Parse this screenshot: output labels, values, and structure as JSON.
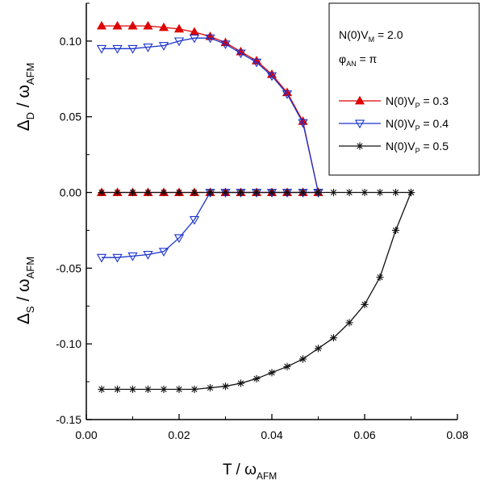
{
  "chart_data": {
    "type": "line",
    "title": "",
    "xlabel": {
      "main": "T / ω",
      "sub": "AFM"
    },
    "ylabel_top": {
      "main": "Δ",
      "sub1": "D",
      "mid": " / ω",
      "sub2": "AFM"
    },
    "ylabel_bottom": {
      "main": "Δ",
      "sub1": "S",
      "mid": " / ω",
      "sub2": "AFM"
    },
    "xlim": [
      0.0,
      0.08
    ],
    "ylim": [
      -0.15,
      0.125
    ],
    "xticks": [
      "0.00",
      "0.02",
      "0.04",
      "0.06",
      "0.08"
    ],
    "yticks": [
      "-0.15",
      "-0.10",
      "-0.05",
      "0.00",
      "0.05",
      "0.10"
    ],
    "xtick_values": [
      0.0,
      0.02,
      0.04,
      0.06,
      0.08
    ],
    "ytick_values": [
      -0.15,
      -0.1,
      -0.05,
      0.0,
      0.05,
      0.1
    ],
    "grid": false,
    "legend_position": "top-right",
    "annotations": {
      "line1": {
        "main": "N(0)V",
        "sub": "M",
        "rest": " = 2.0"
      },
      "line2": {
        "main": "φ",
        "sub": "AN",
        "rest": " = π"
      }
    },
    "series": [
      {
        "label": {
          "main": "N(0)V",
          "sub": "P",
          "rest": " = 0.3"
        },
        "color": "#dd0000",
        "marker": "triangle-up-filled",
        "parts": [
          {
            "x": [
              0.0033,
              0.0067,
              0.01,
              0.0133,
              0.0167,
              0.02,
              0.0233,
              0.0267,
              0.03,
              0.0333,
              0.0367,
              0.04,
              0.0433,
              0.0467,
              0.05
            ],
            "y": [
              0.11,
              0.11,
              0.11,
              0.11,
              0.109,
              0.108,
              0.106,
              0.103,
              0.099,
              0.093,
              0.087,
              0.078,
              0.066,
              0.047,
              0.0
            ]
          },
          {
            "x": [
              0.0033,
              0.0067,
              0.01,
              0.0133,
              0.0167,
              0.02,
              0.0233,
              0.0267,
              0.03,
              0.0333,
              0.0367,
              0.04,
              0.0433,
              0.0467,
              0.05
            ],
            "y": [
              0,
              0,
              0,
              0,
              0,
              0,
              0,
              0,
              0,
              0,
              0,
              0,
              0,
              0,
              0
            ]
          }
        ]
      },
      {
        "label": {
          "main": "N(0)V",
          "sub": "P",
          "rest": " = 0.4"
        },
        "color": "#1a33cc",
        "marker": "triangle-down-open",
        "parts": [
          {
            "x": [
              0.0033,
              0.0067,
              0.01,
              0.0133,
              0.0167,
              0.02,
              0.0233,
              0.0267,
              0.03,
              0.0333,
              0.0367,
              0.04,
              0.0433,
              0.0467,
              0.05
            ],
            "y": [
              0.095,
              0.095,
              0.095,
              0.096,
              0.097,
              0.1,
              0.102,
              0.102,
              0.098,
              0.092,
              0.086,
              0.077,
              0.065,
              0.046,
              0.0
            ]
          },
          {
            "x": [
              0.0033,
              0.0067,
              0.01,
              0.0133,
              0.0167,
              0.02,
              0.0233,
              0.0267,
              0.03,
              0.0333,
              0.0367,
              0.04,
              0.0433,
              0.0467,
              0.05
            ],
            "y": [
              -0.043,
              -0.043,
              -0.042,
              -0.041,
              -0.039,
              -0.03,
              -0.018,
              0,
              0,
              0,
              0,
              0,
              0,
              0,
              0
            ]
          }
        ]
      },
      {
        "label": {
          "main": "N(0)V",
          "sub": "P",
          "rest": " = 0.5"
        },
        "color": "#111111",
        "marker": "asterisk",
        "parts": [
          {
            "x": [
              0.0033,
              0.0067,
              0.01,
              0.0133,
              0.0167,
              0.02,
              0.0233,
              0.0267,
              0.03,
              0.0333,
              0.0367,
              0.04,
              0.0433,
              0.0467,
              0.05,
              0.0533,
              0.0567,
              0.06,
              0.0633,
              0.0667,
              0.07
            ],
            "y": [
              -0.13,
              -0.13,
              -0.13,
              -0.13,
              -0.13,
              -0.13,
              -0.13,
              -0.129,
              -0.128,
              -0.126,
              -0.123,
              -0.119,
              -0.115,
              -0.11,
              -0.103,
              -0.096,
              -0.086,
              -0.074,
              -0.056,
              -0.025,
              0.0
            ]
          },
          {
            "x": [
              0.0033,
              0.0067,
              0.01,
              0.0133,
              0.0167,
              0.02,
              0.0233,
              0.0267,
              0.03,
              0.0333,
              0.0367,
              0.04,
              0.0433,
              0.0467,
              0.05,
              0.0533,
              0.0567,
              0.06,
              0.0633,
              0.0667,
              0.07
            ],
            "y": [
              0,
              0,
              0,
              0,
              0,
              0,
              0,
              0,
              0,
              0,
              0,
              0,
              0,
              0,
              0,
              0,
              0,
              0,
              0,
              0,
              0
            ]
          }
        ]
      }
    ]
  }
}
